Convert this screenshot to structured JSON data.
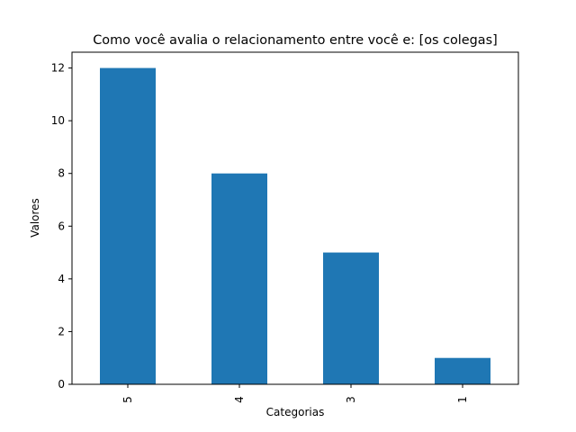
{
  "chart_data": {
    "type": "bar",
    "title": "Como você avalia o relacionamento entre você e: [os colegas]",
    "xlabel": "Categorias",
    "ylabel": "Valores",
    "categories": [
      "5",
      "4",
      "3",
      "1"
    ],
    "values": [
      12,
      8,
      5,
      1
    ],
    "ylim": [
      0,
      12.6
    ],
    "yticks": [
      0,
      2,
      4,
      6,
      8,
      10,
      12
    ],
    "bar_color": "#1f77b4",
    "grid": false,
    "legend": "none"
  }
}
